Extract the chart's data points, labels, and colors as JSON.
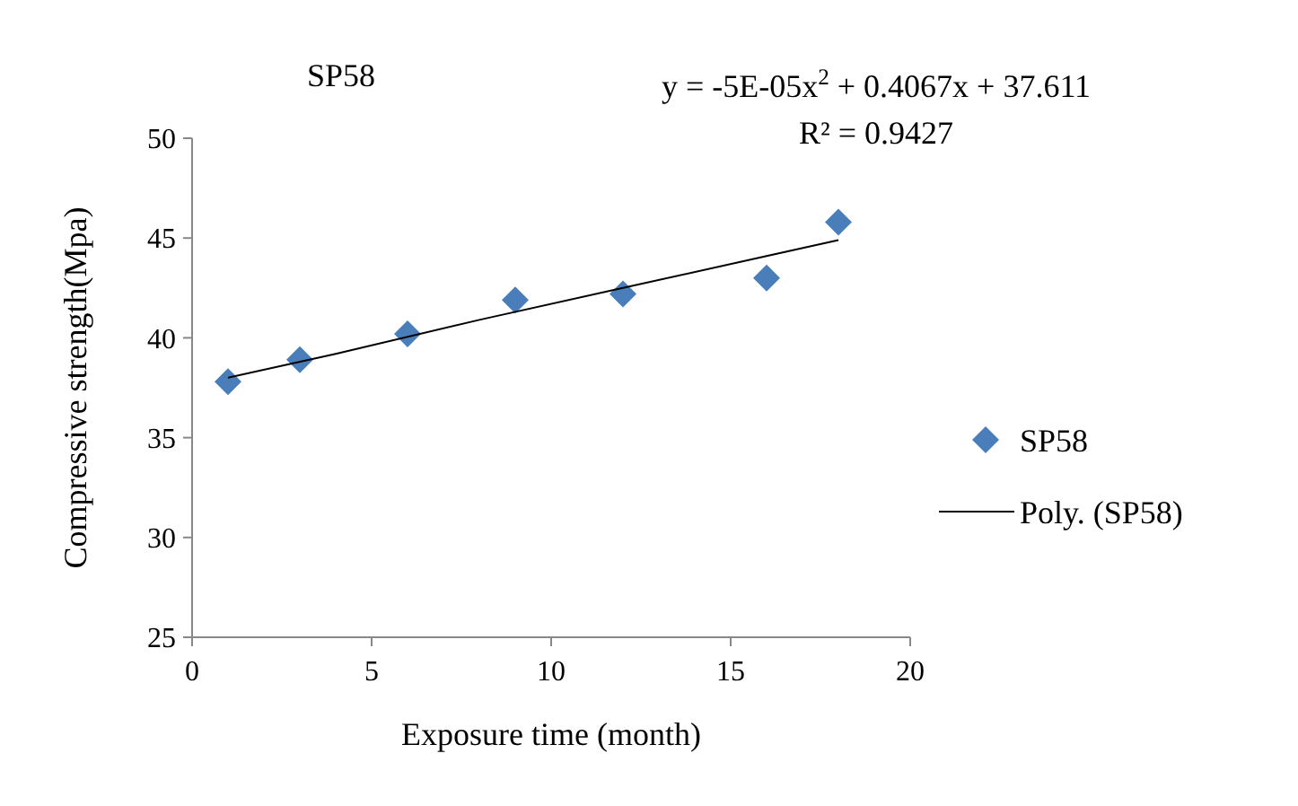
{
  "chart_data": {
    "type": "scatter",
    "title": "SP58",
    "xlabel": "Exposure time (month)",
    "ylabel": "Compressive strength(Mpa)",
    "annotations": [
      "y = -5E-05x$^{2}$ + 0.4067x + 37.611",
      "R² = 0.9427"
    ],
    "xlim": [
      0,
      20
    ],
    "xticks": [
      0,
      5,
      10,
      15,
      20
    ],
    "ylim": [
      25,
      50
    ],
    "yticks": [
      25,
      30,
      35,
      40,
      45,
      50
    ],
    "grid": false,
    "legend": "right",
    "series": [
      {
        "name": "SP58",
        "marker": "diamond",
        "color": "#4a7ebb",
        "x": [
          1,
          3,
          6,
          9,
          12,
          16,
          18
        ],
        "values": [
          37.8,
          38.9,
          40.2,
          41.9,
          42.2,
          43.0,
          45.8
        ]
      },
      {
        "name": "Poly. (SP58)",
        "type": "line",
        "marker": "none",
        "line_style": "solid",
        "color": "#000000",
        "x": [
          1,
          4,
          8,
          12,
          16,
          18
        ],
        "values": [
          38.0,
          39.2,
          40.9,
          42.5,
          44.1,
          44.9
        ]
      }
    ]
  }
}
